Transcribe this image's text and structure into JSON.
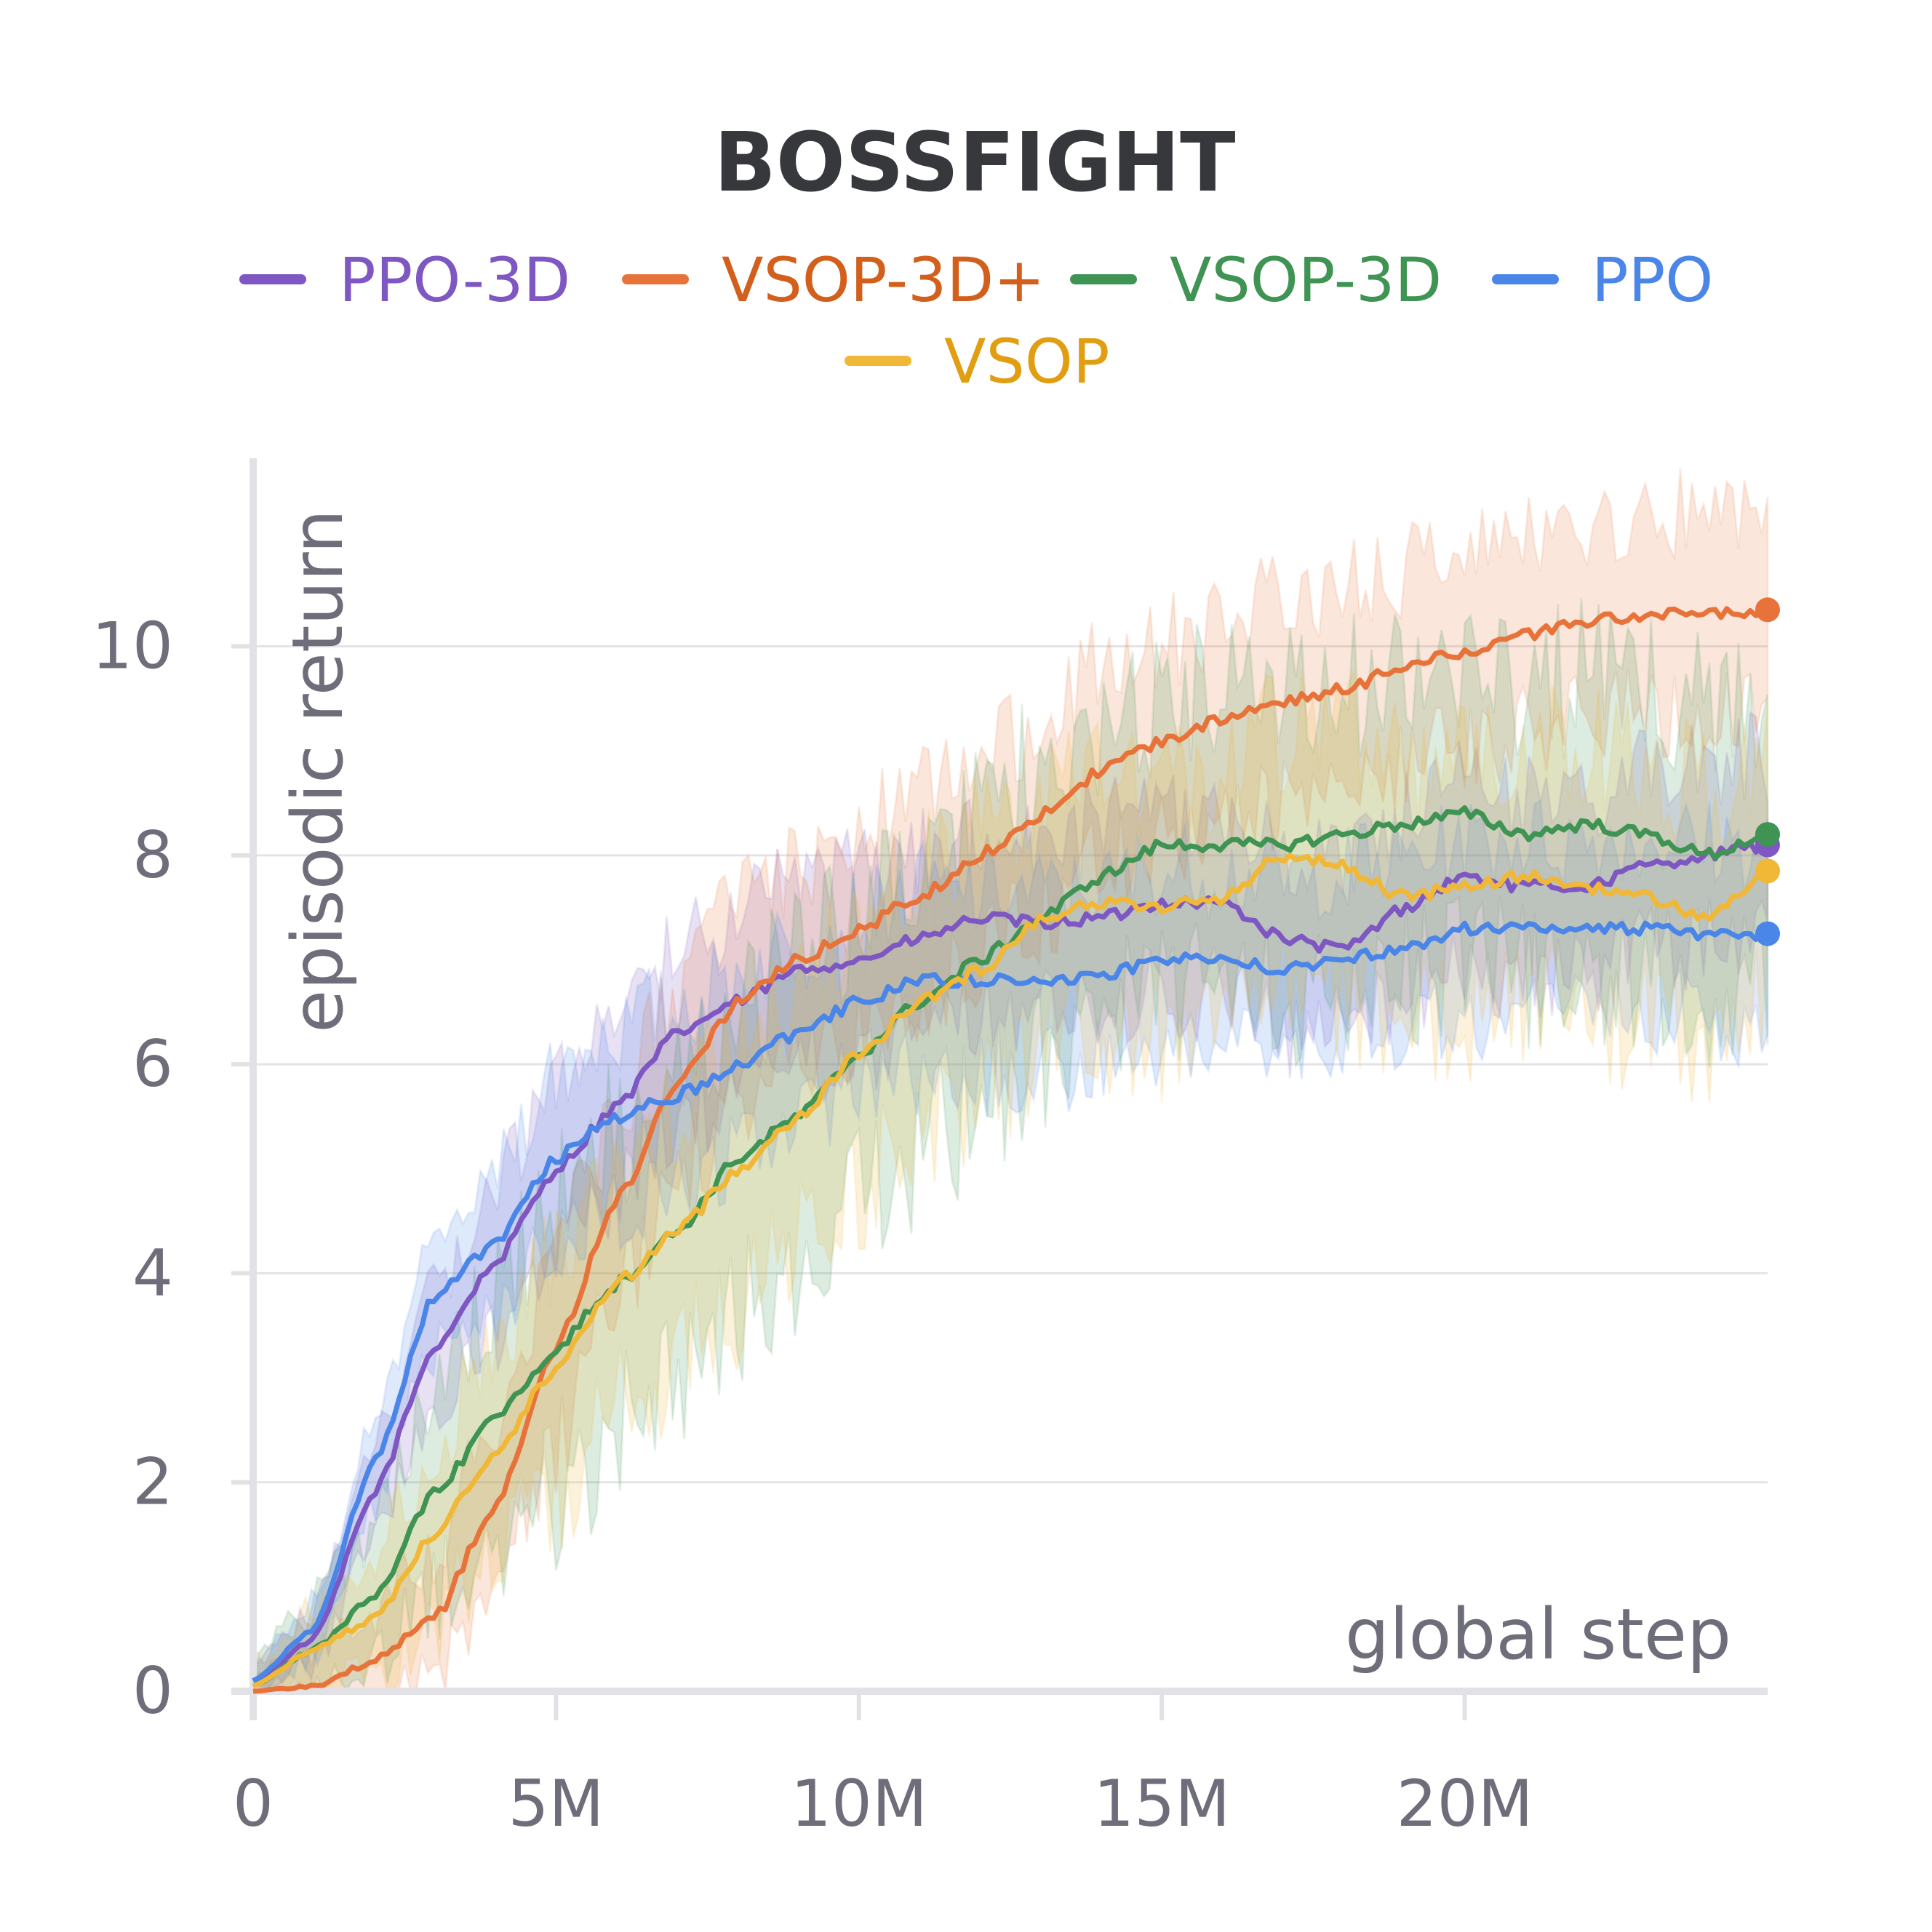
{
  "chart_data": {
    "type": "line",
    "title": "BOSSFIGHT",
    "xlabel": "global step",
    "ylabel": "episodic return",
    "xlim": [
      0,
      25000000
    ],
    "ylim": [
      0,
      11.8
    ],
    "grid": true,
    "legend_position": "top",
    "x_ticks": [
      {
        "value": 0,
        "label": "0"
      },
      {
        "value": 5000000,
        "label": "5M"
      },
      {
        "value": 10000000,
        "label": "10M"
      },
      {
        "value": 15000000,
        "label": "15M"
      },
      {
        "value": 20000000,
        "label": "20M"
      }
    ],
    "y_ticks": [
      {
        "value": 0,
        "label": "0"
      },
      {
        "value": 2,
        "label": "2"
      },
      {
        "value": 4,
        "label": "4"
      },
      {
        "value": 6,
        "label": "6"
      },
      {
        "value": 8,
        "label": "8"
      },
      {
        "value": 10,
        "label": "10"
      }
    ],
    "x": [
      0,
      1000000,
      2000000,
      3000000,
      4000000,
      5000000,
      6000000,
      7000000,
      8000000,
      9000000,
      10000000,
      11000000,
      12000000,
      13000000,
      14000000,
      15000000,
      16000000,
      17000000,
      18000000,
      19000000,
      20000000,
      21000000,
      22000000,
      23000000,
      24000000,
      25000000
    ],
    "series": [
      {
        "name": "PPO-3D",
        "color": "#7e57c2",
        "label_color": "#7e57c2",
        "spread": 0.9,
        "values": [
          0.1,
          0.5,
          1.9,
          3.3,
          4.1,
          5.0,
          5.6,
          6.3,
          6.6,
          6.9,
          7.0,
          7.2,
          7.4,
          7.35,
          7.4,
          7.55,
          7.55,
          7.2,
          7.1,
          7.5,
          7.8,
          7.7,
          7.7,
          7.9,
          8.0,
          8.1
        ]
      },
      {
        "name": "VSOP-3D+",
        "color": "#e8733a",
        "label_color": "#d35f1c",
        "spread": 1.0,
        "values": [
          0.0,
          0.05,
          0.3,
          0.7,
          1.8,
          3.3,
          4.7,
          5.8,
          6.6,
          7.0,
          7.3,
          7.6,
          8.0,
          8.4,
          8.8,
          9.1,
          9.3,
          9.45,
          9.6,
          9.8,
          9.95,
          10.1,
          10.25,
          10.3,
          10.3,
          10.35
        ]
      },
      {
        "name": "VSOP-3D",
        "color": "#3f9454",
        "label_color": "#3f9454",
        "spread": 1.5,
        "values": [
          0.05,
          0.4,
          0.9,
          1.9,
          2.6,
          3.3,
          3.9,
          4.4,
          5.1,
          5.5,
          6.1,
          6.6,
          7.0,
          7.4,
          7.8,
          8.1,
          8.1,
          8.1,
          8.2,
          8.3,
          8.4,
          8.2,
          8.3,
          8.2,
          8.0,
          8.2
        ]
      },
      {
        "name": "PPO",
        "color": "#4a86e8",
        "label_color": "#4a86e8",
        "spread": 0.9,
        "values": [
          0.1,
          0.6,
          2.2,
          3.8,
          4.3,
          5.1,
          5.5,
          5.7,
          6.0,
          6.3,
          6.6,
          6.8,
          6.8,
          6.8,
          6.85,
          7.0,
          7.0,
          6.9,
          7.0,
          7.1,
          7.3,
          7.3,
          7.3,
          7.3,
          7.25,
          7.25
        ]
      },
      {
        "name": "VSOP",
        "color": "#f0b836",
        "label_color": "#e19e12",
        "spread": 1.3,
        "values": [
          0.05,
          0.4,
          0.7,
          1.5,
          2.3,
          3.1,
          3.9,
          4.4,
          5.0,
          5.5,
          6.1,
          6.6,
          6.9,
          7.4,
          7.55,
          7.5,
          7.6,
          8.0,
          7.9,
          7.6,
          7.7,
          7.8,
          7.7,
          7.6,
          7.4,
          7.85
        ]
      }
    ]
  }
}
